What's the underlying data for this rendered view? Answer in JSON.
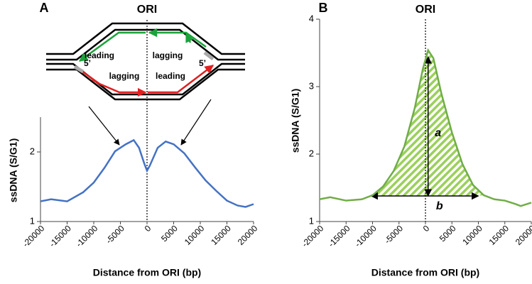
{
  "chart_data": [
    {
      "type": "line",
      "panel": "A",
      "origin_label": "ORI",
      "annotations": [
        "leading",
        "lagging",
        "lagging",
        "leading",
        "5’",
        "5’"
      ],
      "xlabel": "Distance from ORI (bp)",
      "ylabel": "ssDNA (S/G1)",
      "xlim": [
        -20000,
        20000
      ],
      "xticks": [
        -20000,
        -15000,
        -10000,
        -5000,
        0,
        5000,
        10000,
        15000,
        20000
      ],
      "ylim": [
        1,
        2.5
      ],
      "yticks": [
        1,
        2
      ],
      "x": [
        -20000,
        -18000,
        -15000,
        -12000,
        -10000,
        -8000,
        -6000,
        -4000,
        -2500,
        -1500,
        -500,
        0,
        500,
        2000,
        3500,
        5000,
        7000,
        9000,
        11000,
        13000,
        15000,
        17000,
        18500,
        20000
      ],
      "series": [
        {
          "color": "#4472c4",
          "values": [
            1.29,
            1.32,
            1.29,
            1.42,
            1.56,
            1.77,
            2.01,
            2.11,
            2.17,
            2.06,
            1.83,
            1.73,
            1.8,
            2.06,
            2.15,
            2.11,
            1.98,
            1.78,
            1.59,
            1.44,
            1.3,
            1.23,
            1.21,
            1.25
          ]
        }
      ]
    },
    {
      "type": "line",
      "panel": "B",
      "origin_label": "ORI",
      "annotations": [
        "a",
        "b"
      ],
      "xlabel": "Distance from ORI (bp)",
      "ylabel": "ssDNA (S/G1)",
      "xlim": [
        -20000,
        20000
      ],
      "xticks": [
        -20000,
        -15000,
        -10000,
        -5000,
        0,
        5000,
        10000,
        15000,
        20000
      ],
      "ylim": [
        1,
        4
      ],
      "yticks": [
        1,
        2,
        3,
        4
      ],
      "x": [
        -20000,
        -18000,
        -15000,
        -12000,
        -10000,
        -8000,
        -6000,
        -4000,
        -2000,
        -500,
        500,
        1500,
        3000,
        5000,
        7000,
        9000,
        11000,
        13000,
        15000,
        17000,
        18000,
        20000
      ],
      "series": [
        {
          "color": "#70ad47",
          "values": [
            1.33,
            1.36,
            1.31,
            1.33,
            1.39,
            1.52,
            1.75,
            2.11,
            2.69,
            3.26,
            3.54,
            3.42,
            2.9,
            2.32,
            1.85,
            1.54,
            1.39,
            1.33,
            1.31,
            1.26,
            1.23,
            1.28
          ]
        }
      ]
    }
  ]
}
